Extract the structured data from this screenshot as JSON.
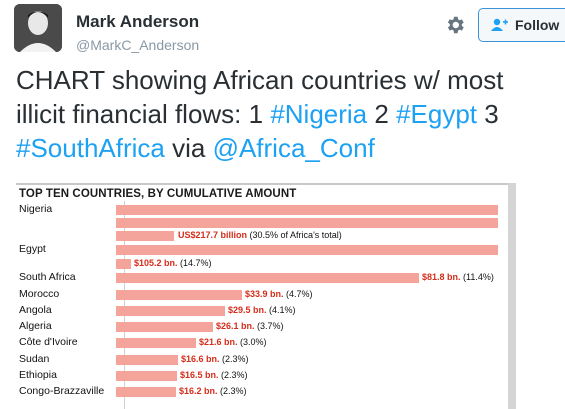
{
  "user": {
    "name": "Mark Anderson",
    "handle": "@MarkC_Anderson"
  },
  "follow_button": {
    "label": "Follow"
  },
  "tweet": {
    "line1": "CHART showing African countries w/ most",
    "line2_prefix": "illicit financial flows: 1 ",
    "hashtag1": "#Nigeria",
    "mid1": " 2 ",
    "hashtag2": "#Egypt",
    "mid2": " 3",
    "hashtag3": "#SouthAfrica",
    "via": " via ",
    "mention": "@Africa_Conf"
  },
  "colors": {
    "bar": "#f4a49a",
    "amount_text": "#d42e1b",
    "link": "#1da1f2"
  },
  "chart_data": {
    "type": "bar",
    "title": "TOP TEN COUNTRIES, BY CUMULATIVE AMOUNT",
    "unit": "US$ billion",
    "categories": [
      "Nigeria",
      "Egypt",
      "South Africa",
      "Morocco",
      "Angola",
      "Algeria",
      "Côte d'Ivoire",
      "Sudan",
      "Ethiopia",
      "Congo-Brazzaville"
    ],
    "values": [
      217.7,
      105.2,
      81.8,
      33.9,
      29.5,
      26.1,
      21.6,
      16.6,
      16.5,
      16.2
    ],
    "value_labels": [
      {
        "amount": "US$217.7 billion",
        "share": "(30.5% of Africa's total)"
      },
      {
        "amount": "$105.2 bn.",
        "share": "(14.7%)"
      },
      {
        "amount": "$81.8 bn.",
        "share": "(11.4%)"
      },
      {
        "amount": "$33.9 bn.",
        "share": "(4.7%)"
      },
      {
        "amount": "$29.5 bn.",
        "share": "(4.1%)"
      },
      {
        "amount": "$26.1 bn.",
        "share": "(3.7%)"
      },
      {
        "amount": "$21.6 bn.",
        "share": "(3.0%)"
      },
      {
        "amount": "$16.6 bn.",
        "share": "(2.3%)"
      },
      {
        "amount": "$16.5 bn.",
        "share": "(2.3%)"
      },
      {
        "amount": "$16.2 bn.",
        "share": "(2.3%)"
      }
    ]
  }
}
